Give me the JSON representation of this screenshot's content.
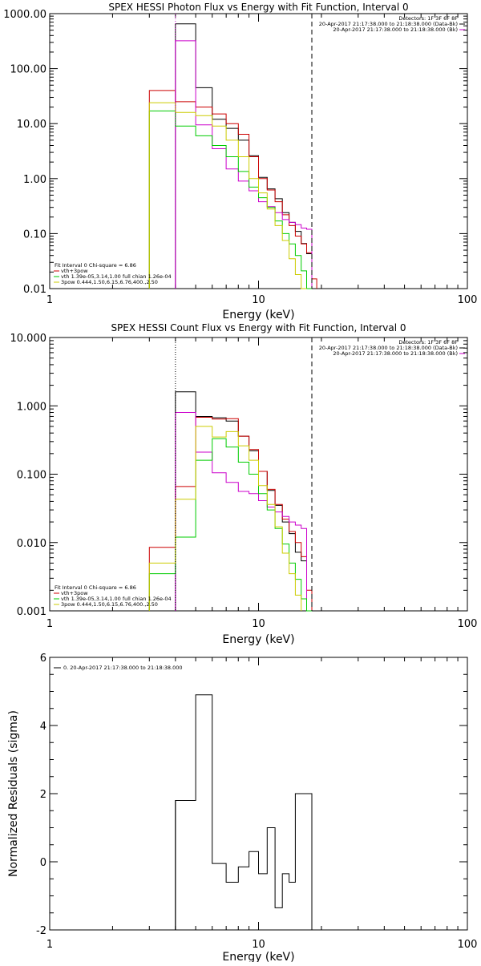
{
  "chart_data": [
    {
      "type": "line",
      "title": "SPEX HESSI Photon Flux vs Energy with Fit Function, Interval 0",
      "xlabel": "Energy (keV)",
      "ylabel": "",
      "x_scale": "log",
      "y_scale": "log",
      "xlim": [
        1,
        100
      ],
      "ylim": [
        0.01,
        1000
      ],
      "x_ticks": [
        {
          "v": 1,
          "label": "1"
        },
        {
          "v": 10,
          "label": "10"
        },
        {
          "v": 100,
          "label": "100"
        }
      ],
      "y_ticks": [
        {
          "v": 0.01,
          "label": "0.01"
        },
        {
          "v": 0.1,
          "label": "0.10"
        },
        {
          "v": 1,
          "label": "1.00"
        },
        {
          "v": 10,
          "label": "10.00"
        },
        {
          "v": 100,
          "label": "100.00"
        },
        {
          "v": 1000,
          "label": "1000.00"
        }
      ],
      "vlines": [
        {
          "x": 4.0,
          "style": "dotted",
          "color": "#cc00cc"
        },
        {
          "x": 18.0,
          "style": "dashed",
          "color": "#000000"
        }
      ],
      "legend_topright": {
        "position": "top-right",
        "lines": [
          {
            "text": "Detectors: 1F 3F 6F 8F",
            "color": ""
          },
          {
            "text": "20-Apr-2017 21:17:38.000 to 21:18:38.000 (Data-Bk)",
            "color": "#000000"
          },
          {
            "text": "20-Apr-2017 21:17:38.000 to 21:18:38.000 (Bk)",
            "color": "#cc00cc"
          }
        ]
      },
      "legend_bottomleft": {
        "position": "bottom-left",
        "lines": [
          {
            "text": "Fit Interval 0   Chi-square = 6.86",
            "color": ""
          },
          {
            "text": "vth+3pow",
            "color": "#cc0000"
          },
          {
            "text": "vth 1.39e-05,3.14,1.00  full chian 1.26e-04",
            "color": "#00cc00"
          },
          {
            "text": "3pow 0.444,1.50,6.15,6.76,400.,2.50",
            "color": "#cccc00"
          }
        ]
      },
      "edges": [
        3,
        4,
        5,
        6,
        7,
        8,
        9,
        10,
        11,
        12,
        13,
        14,
        15,
        16,
        17,
        18,
        19,
        20,
        21,
        22
      ],
      "series": [
        {
          "color": "#000000",
          "values": [
            null,
            650,
            45,
            12,
            8.2,
            5.0,
            2.6,
            1.05,
            0.65,
            0.43,
            0.24,
            0.16,
            0.11,
            0.066,
            0.043,
            null,
            null,
            null,
            null
          ]
        },
        {
          "color": "#cc0000",
          "values": [
            40,
            25,
            20,
            15,
            10,
            6.4,
            2.5,
            1.0,
            0.62,
            0.38,
            0.22,
            0.14,
            0.09,
            0.065,
            0.045,
            0.015,
            null,
            null,
            null
          ]
        },
        {
          "color": "#cc00cc",
          "values": [
            null,
            320,
            9.5,
            3.5,
            1.5,
            0.9,
            0.6,
            0.38,
            0.31,
            0.24,
            0.18,
            0.16,
            0.145,
            0.126,
            0.12,
            null,
            null,
            null,
            null
          ]
        },
        {
          "color": "#00cc00",
          "values": [
            17,
            9,
            6.0,
            4.0,
            2.5,
            1.35,
            0.7,
            0.45,
            0.3,
            0.17,
            0.1,
            0.065,
            0.04,
            0.021,
            0.01,
            null,
            null,
            null,
            null
          ]
        },
        {
          "color": "#cccc00",
          "values": [
            24,
            16,
            14,
            9.0,
            5.0,
            2.5,
            1.0,
            0.55,
            0.28,
            0.14,
            0.075,
            0.035,
            0.018,
            0.01,
            null,
            null,
            null,
            null,
            null
          ]
        }
      ]
    },
    {
      "type": "line",
      "title": "SPEX HESSI Count Flux vs Energy with Fit Function, Interval 0",
      "xlabel": "Energy (keV)",
      "ylabel": "",
      "x_scale": "log",
      "y_scale": "log",
      "xlim": [
        1,
        100
      ],
      "ylim": [
        0.001,
        10
      ],
      "x_ticks": [
        {
          "v": 1,
          "label": "1"
        },
        {
          "v": 10,
          "label": "10"
        },
        {
          "v": 100,
          "label": "100"
        }
      ],
      "y_ticks": [
        {
          "v": 0.001,
          "label": "0.001"
        },
        {
          "v": 0.01,
          "label": "0.010"
        },
        {
          "v": 0.1,
          "label": "0.100"
        },
        {
          "v": 1,
          "label": "1.000"
        },
        {
          "v": 10,
          "label": "10.000"
        }
      ],
      "vlines": [
        {
          "x": 4.0,
          "style": "dotted",
          "color": "#000000"
        },
        {
          "x": 18.0,
          "style": "dashed",
          "color": "#000000"
        }
      ],
      "legend_topright": {
        "position": "top-right",
        "lines": [
          {
            "text": "Detectors: 1F 3F 6F 8F",
            "color": ""
          },
          {
            "text": "20-Apr-2017 21:17:38.000 to 21:18:38.000 (Data-Bk)",
            "color": "#000000"
          },
          {
            "text": "20-Apr-2017 21:17:38.000 to 21:18:38.000 (Bk)",
            "color": "#cc00cc"
          }
        ]
      },
      "legend_bottomleft": {
        "position": "bottom-left",
        "lines": [
          {
            "text": "Fit Interval 0   Chi-square = 6.86",
            "color": ""
          },
          {
            "text": "vth+3pow",
            "color": "#cc0000"
          },
          {
            "text": "vth 1.39e-05,3.14,1.00  full chian 1.26e-04",
            "color": "#00cc00"
          },
          {
            "text": "3pow 0.444,1.50,6.15,6.76,400.,2.50",
            "color": "#cccc00"
          }
        ]
      },
      "edges": [
        3,
        4,
        5,
        6,
        7,
        8,
        9,
        10,
        11,
        12,
        13,
        14,
        15,
        16,
        17,
        18,
        19,
        20,
        21,
        22
      ],
      "series": [
        {
          "color": "#000000",
          "values": [
            null,
            1.6,
            0.7,
            0.67,
            0.6,
            0.36,
            0.22,
            0.11,
            0.058,
            0.035,
            0.02,
            0.0135,
            0.0072,
            0.0054,
            null,
            null,
            null,
            null,
            null
          ]
        },
        {
          "color": "#cc0000",
          "values": [
            0.0085,
            0.066,
            0.68,
            0.64,
            0.65,
            0.36,
            0.23,
            0.11,
            0.06,
            0.036,
            0.022,
            0.0145,
            0.01,
            0.0062,
            0.002,
            null,
            null,
            null,
            null
          ]
        },
        {
          "color": "#cc00cc",
          "values": [
            null,
            0.8,
            0.21,
            0.105,
            0.076,
            0.056,
            0.052,
            0.041,
            0.033,
            0.028,
            0.024,
            0.02,
            0.018,
            0.016,
            null,
            null,
            null,
            null,
            null
          ]
        },
        {
          "color": "#00cc00",
          "values": [
            0.0035,
            0.012,
            0.16,
            0.33,
            0.25,
            0.15,
            0.1,
            0.052,
            0.03,
            0.016,
            0.0095,
            0.005,
            0.0029,
            0.0015,
            0.001,
            null,
            null,
            null,
            null
          ]
        },
        {
          "color": "#cccc00",
          "values": [
            0.005,
            0.043,
            0.5,
            0.35,
            0.42,
            0.26,
            0.16,
            0.068,
            0.036,
            0.017,
            0.007,
            0.0035,
            0.0017,
            null,
            null,
            null,
            null,
            null,
            null
          ]
        }
      ]
    },
    {
      "type": "line",
      "title": "",
      "xlabel": "Energy (keV)",
      "ylabel": "Normalized Residuals (sigma)",
      "x_scale": "log",
      "y_scale": "linear",
      "xlim": [
        1,
        100
      ],
      "ylim": [
        -2,
        6
      ],
      "x_ticks": [
        {
          "v": 1,
          "label": "1"
        },
        {
          "v": 10,
          "label": "10"
        },
        {
          "v": 100,
          "label": "100"
        }
      ],
      "y_ticks": [
        {
          "v": -2,
          "label": "-2"
        },
        {
          "v": 0,
          "label": "0"
        },
        {
          "v": 2,
          "label": "2"
        },
        {
          "v": 4,
          "label": "4"
        },
        {
          "v": 6,
          "label": "6"
        }
      ],
      "legend_topleft": {
        "position": "top-left",
        "lines": [
          {
            "text": "0. 20-Apr-2017 21:17:38.000 to 21:18:38.000",
            "color": "#000000"
          }
        ]
      },
      "edges": [
        4,
        5,
        6,
        7,
        8,
        9,
        10,
        11,
        12,
        13,
        14,
        15,
        16,
        17,
        18
      ],
      "series": [
        {
          "color": "#000000",
          "values": [
            1.8,
            4.9,
            -0.05,
            -0.6,
            -0.15,
            0.3,
            -0.35,
            1.0,
            -1.35,
            -0.35,
            -0.6,
            2.0
          ],
          "edges_used": [
            4,
            5,
            6,
            7,
            8,
            9,
            10,
            11,
            12,
            13,
            14,
            15,
            18
          ]
        }
      ]
    }
  ]
}
